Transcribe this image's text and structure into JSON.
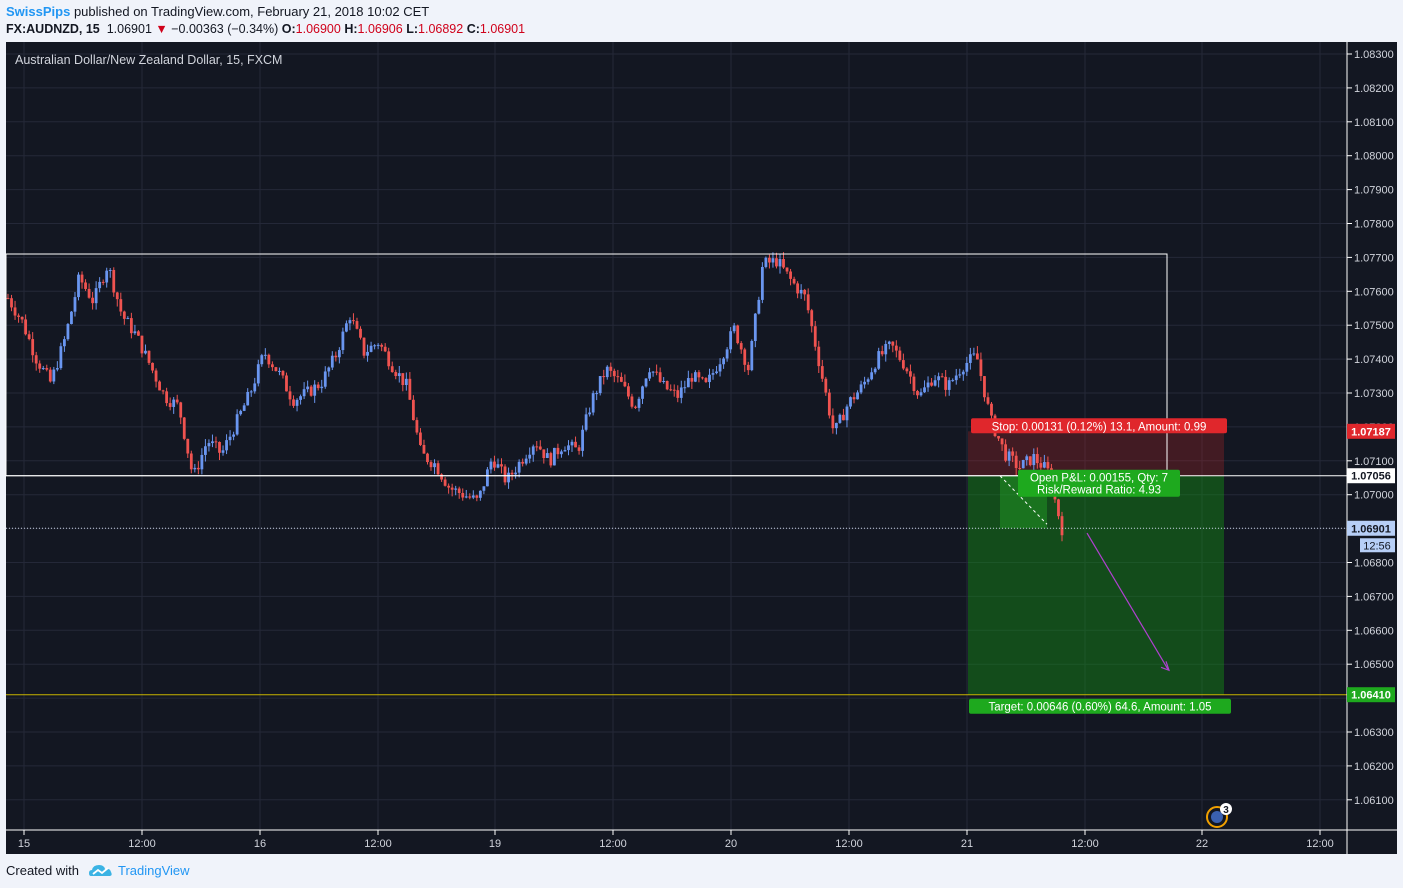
{
  "header": {
    "author": "SwissPips",
    "published": "published on TradingView.com, February 21, 2018 10:02 CET",
    "symbol": "FX:AUDNZD, 15",
    "last": "1.06901",
    "change_arrow": "▼",
    "change": "−0.00363 (−0.34%)",
    "o_label": "O:",
    "o_value": "1.06900",
    "h_label": "H:",
    "h_value": "1.06906",
    "l_label": "L:",
    "l_value": "1.06892",
    "c_label": "C:",
    "c_value": "1.06901"
  },
  "footer": {
    "created_with": "Created with",
    "brand": "TradingView"
  },
  "chart_data": {
    "type": "candlestick",
    "title": "Australian Dollar/New Zealand Dollar, 15, FXCM",
    "ylim": [
      1.0602,
      1.0834
    ],
    "y_ticks": [
      "1.08300",
      "1.08200",
      "1.08100",
      "1.08000",
      "1.07900",
      "1.07800",
      "1.07700",
      "1.07600",
      "1.07500",
      "1.07400",
      "1.07300",
      "1.07200",
      "1.07100",
      "1.07000",
      "1.06900",
      "1.06800",
      "1.06700",
      "1.06600",
      "1.06500",
      "1.06400",
      "1.06300",
      "1.06200",
      "1.06100"
    ],
    "x_ticks": [
      "15",
      "12:00",
      "16",
      "12:00",
      "19",
      "12:00",
      "20",
      "12:00",
      "21",
      "12:00",
      "22",
      "12:00"
    ],
    "price_path": [
      1.0758,
      1.0751,
      1.074,
      1.0733,
      1.0746,
      1.0764,
      1.0757,
      1.0768,
      1.0753,
      1.0747,
      1.0738,
      1.0729,
      1.0726,
      1.0705,
      1.0716,
      1.0712,
      1.0721,
      1.073,
      1.0742,
      1.0736,
      1.0728,
      1.073,
      1.0733,
      1.0741,
      1.0753,
      1.0742,
      1.0745,
      1.0738,
      1.0732,
      1.0712,
      1.0709,
      1.0702,
      1.07,
      1.0698,
      1.0711,
      1.0704,
      1.071,
      1.0716,
      1.071,
      1.0715,
      1.0713,
      1.0728,
      1.0737,
      1.0733,
      1.0726,
      1.0738,
      1.0732,
      1.0729,
      1.0735,
      1.0732,
      1.074,
      1.0749,
      1.0737,
      1.0768,
      1.0769,
      1.0763,
      1.0758,
      1.0738,
      1.0718,
      1.0727,
      1.0732,
      1.074,
      1.0744,
      1.0738,
      1.0729,
      1.0735,
      1.0732,
      1.0738,
      1.0741,
      1.0722,
      1.0712,
      1.0708,
      1.0711,
      1.0707,
      1.069
    ],
    "range_box": {
      "top": 1.0771,
      "bottom": 1.07056
    },
    "current_price": {
      "label": "1.06901",
      "value": 1.06901,
      "countdown": "12:56"
    },
    "horizontal_lines": [
      {
        "price": 1.07056,
        "label": "1.07056"
      },
      {
        "price": 1.0641,
        "label": "1.06410",
        "color": "#c8b400"
      }
    ],
    "short_position": {
      "entry": 1.07056,
      "stop": 1.07187,
      "target": 1.0641,
      "stop_label": "1.07187",
      "stop_text": "Stop: 0.00131 (0.12%) 13.1, Amount: 0.99",
      "pnl_text": "Open P&L: 0.00155, Qty: 7",
      "rr_text": "Risk/Reward Ratio: 4.93",
      "target_text": "Target: 0.00646 (0.60%) 64.6, Amount: 1.05"
    },
    "projection_arrow": {
      "color": "#b040d0"
    },
    "events_badge": "3",
    "colors": {
      "bg": "#131722",
      "up": "#6a96f0",
      "down": "#ef5350",
      "grid": "#242838"
    }
  }
}
